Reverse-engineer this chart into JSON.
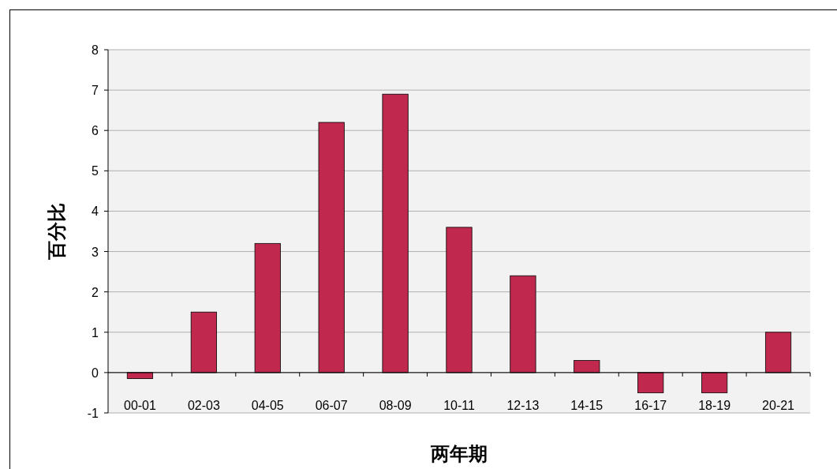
{
  "chart_data": {
    "type": "bar",
    "xlabel": "两年期",
    "ylabel": "百分比",
    "categories": [
      "00-01",
      "02-03",
      "04-05",
      "06-07",
      "08-09",
      "10-11",
      "12-13",
      "14-15",
      "16-17",
      "18-19",
      "20-21"
    ],
    "values": [
      -0.15,
      1.5,
      3.2,
      6.2,
      6.9,
      3.6,
      2.4,
      0.3,
      -0.5,
      -0.5,
      1.0
    ],
    "color": "#c0294d",
    "ylim": [
      -1,
      8
    ],
    "yticks": [
      {
        "value": -1,
        "label": "-1"
      },
      0,
      1,
      2,
      3,
      4,
      5,
      6,
      7,
      8
    ],
    "grid": "y"
  }
}
